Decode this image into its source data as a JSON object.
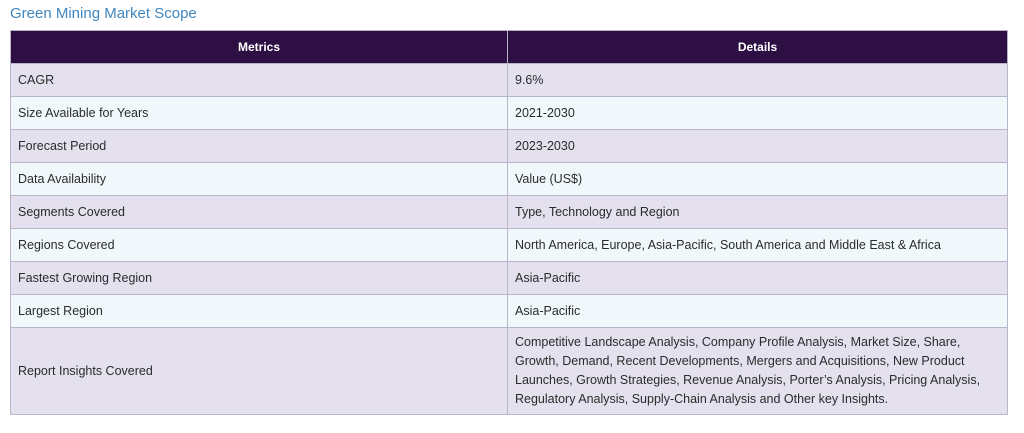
{
  "page_title": "Green Mining Market Scope",
  "table": {
    "headers": [
      "Metrics",
      "Details"
    ],
    "rows": [
      {
        "metric": "CAGR",
        "detail": "9.6%"
      },
      {
        "metric": "Size Available for Years",
        "detail": "2021-2030"
      },
      {
        "metric": "Forecast Period",
        "detail": "2023-2030"
      },
      {
        "metric": "Data Availability",
        "detail": "Value (US$)"
      },
      {
        "metric": "Segments Covered",
        "detail": "Type, Technology and Region"
      },
      {
        "metric": "Regions Covered",
        "detail": "North America, Europe, Asia-Pacific, South America and Middle East & Africa"
      },
      {
        "metric": "Fastest Growing Region",
        "detail": "Asia-Pacific"
      },
      {
        "metric": "Largest Region",
        "detail": "Asia-Pacific"
      },
      {
        "metric": "Report Insights Covered",
        "detail": "Competitive Landscape Analysis, Company Profile Analysis, Market Size, Share, Growth, Demand, Recent Developments, Mergers and Acquisitions, New Product Launches, Growth Strategies, Revenue Analysis, Porter’s Analysis, Pricing Analysis, Regulatory Analysis, Supply-Chain Analysis and Other key Insights."
      }
    ]
  },
  "colors": {
    "title": "#3f86bf",
    "header_bg": "#2e0f44",
    "row_odd_bg": "#e4e0ee",
    "row_even_bg": "#f1f8fc",
    "border": "#b9b5cc"
  }
}
